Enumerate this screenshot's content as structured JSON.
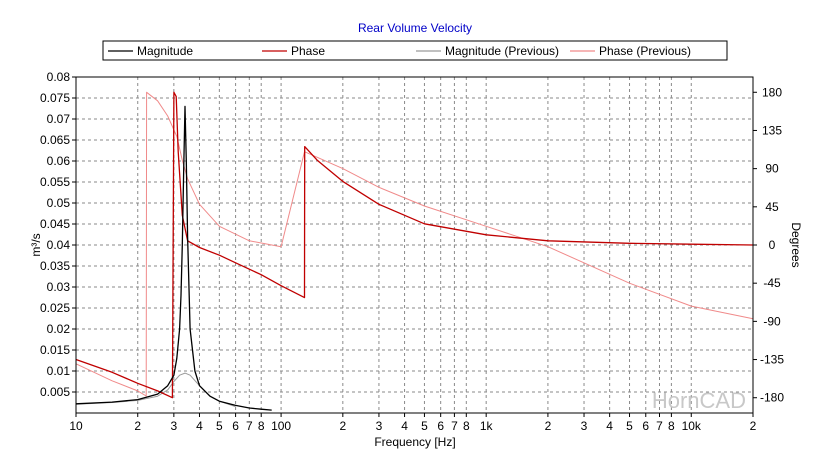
{
  "colors": {
    "magnitude": "#000000",
    "phase": "#c00000",
    "magnitude_previous": "#9a9a9a",
    "phase_previous": "#f08a8a",
    "title": "#0000c8",
    "grid": "#8a8a8a",
    "watermark": "#c8c8c8"
  },
  "chart_data": {
    "type": "line",
    "title": "Rear Volume Velocity",
    "xlabel": "Frequency [Hz]",
    "ylabel": "m³/s",
    "y2label": "Degrees",
    "xscale": "log",
    "xlim": [
      10,
      20000
    ],
    "ylim": [
      0,
      0.08
    ],
    "y2lim": [
      -198,
      198
    ],
    "grid": true,
    "legend": "top",
    "watermark": "HornCAD",
    "legend_entries": [
      "Magnitude",
      "Phase",
      "Magnitude (Previous)",
      "Phase (Previous)"
    ],
    "x_tick_values": [
      10,
      20,
      30,
      40,
      50,
      60,
      70,
      80,
      100,
      200,
      300,
      400,
      500,
      600,
      700,
      800,
      1000,
      2000,
      3000,
      4000,
      5000,
      6000,
      7000,
      8000,
      10000,
      20000
    ],
    "x_tick_labels": [
      "10",
      "2",
      "3",
      "4",
      "5",
      "6",
      "7",
      "8",
      "100",
      "2",
      "3",
      "4",
      "5",
      "6",
      "7",
      "8",
      "1k",
      "2",
      "3",
      "4",
      "5",
      "6",
      "7",
      "8",
      "10k",
      "2"
    ],
    "y_tick_values": [
      0.005,
      0.01,
      0.015,
      0.02,
      0.025,
      0.03,
      0.035,
      0.04,
      0.045,
      0.05,
      0.055,
      0.06,
      0.065,
      0.07,
      0.075,
      0.08
    ],
    "y_tick_labels": [
      "0.005",
      "0.01",
      "0.015",
      "0.02",
      "0.025",
      "0.03",
      "0.035",
      "0.04",
      "0.045",
      "0.05",
      "0.055",
      "0.06",
      "0.065",
      "0.07",
      "0.075",
      "0.08"
    ],
    "y2_tick_values": [
      -180,
      -135,
      -90,
      -45,
      0,
      45,
      90,
      135,
      180
    ],
    "y2_tick_labels": [
      "-180",
      "-135",
      "-90",
      "-45",
      "0",
      "45",
      "90",
      "135",
      "180"
    ],
    "series": [
      {
        "name": "Magnitude",
        "axis": "left",
        "x": [
          10,
          15,
          20,
          25,
          28,
          30,
          31,
          32,
          32.5,
          33,
          33.5,
          34,
          34.5,
          35,
          36,
          38,
          40,
          45,
          50,
          60,
          70,
          80,
          90
        ],
        "y": [
          0.0022,
          0.0026,
          0.0032,
          0.0045,
          0.0065,
          0.009,
          0.013,
          0.02,
          0.028,
          0.04,
          0.058,
          0.073,
          0.06,
          0.042,
          0.02,
          0.01,
          0.0065,
          0.004,
          0.0028,
          0.0018,
          0.0012,
          0.0009,
          0.0007
        ]
      },
      {
        "name": "Phase",
        "axis": "right",
        "x": [
          10,
          15,
          20,
          25,
          29.5,
          30,
          30.8,
          31.5,
          33,
          35,
          40,
          50,
          60,
          80,
          100,
          130,
          130.3,
          150,
          200,
          300,
          500,
          1000,
          2000,
          5000,
          10000,
          20000
        ],
        "y": [
          -135,
          -150,
          -163,
          -172,
          -180,
          180,
          175,
          110,
          35,
          5,
          -3,
          -12,
          -21,
          -35,
          -48,
          -62,
          116,
          100,
          75,
          48,
          25,
          12,
          5,
          2,
          1,
          0
        ]
      },
      {
        "name": "Magnitude (Previous)",
        "axis": "left",
        "x": [
          10,
          15,
          20,
          25,
          28,
          30,
          32,
          34,
          36,
          40,
          45,
          50,
          60
        ],
        "y": [
          0.0021,
          0.0025,
          0.003,
          0.004,
          0.0055,
          0.0075,
          0.009,
          0.0095,
          0.009,
          0.0065,
          0.004,
          0.0028,
          0.0015
        ]
      },
      {
        "name": "Phase (Previous)",
        "axis": "right",
        "x": [
          10,
          15,
          20,
          22,
          22.1,
          25,
          28,
          31,
          33,
          35,
          40,
          50,
          70,
          100,
          130,
          200,
          300,
          500,
          1000,
          2000,
          5000,
          10000,
          20000
        ],
        "y": [
          -140,
          -160,
          -172,
          -178,
          180,
          170,
          152,
          128,
          100,
          78,
          48,
          22,
          5,
          -2,
          110,
          90,
          68,
          46,
          22,
          -2,
          -45,
          -72,
          -87
        ]
      }
    ]
  }
}
